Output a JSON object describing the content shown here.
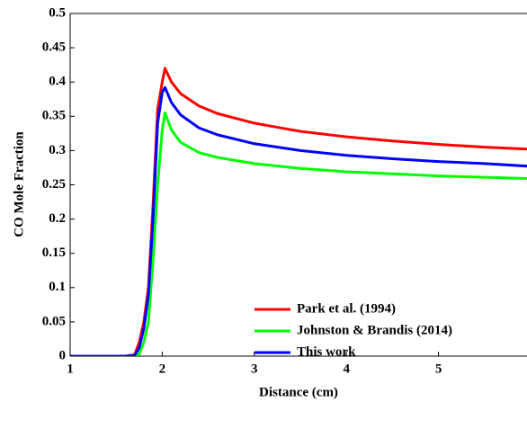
{
  "chart_data": {
    "type": "line",
    "xlabel": "Distance (cm)",
    "ylabel": "CO Mole Fraction",
    "x": [
      1,
      1.6,
      1.7,
      1.75,
      1.8,
      1.85,
      1.9,
      1.95,
      2,
      2.03,
      2.1,
      2.2,
      2.4,
      2.6,
      3,
      3.5,
      4,
      4.5,
      5,
      5.5,
      6
    ],
    "series": [
      {
        "name": "Park et al. (1994)",
        "color": "#ff0000",
        "values": [
          0,
          0,
          0.002,
          0.02,
          0.05,
          0.1,
          0.22,
          0.36,
          0.4,
          0.42,
          0.4,
          0.383,
          0.365,
          0.354,
          0.34,
          0.328,
          0.32,
          0.314,
          0.309,
          0.305,
          0.302
        ]
      },
      {
        "name": "Johnston & Brandis (2014)",
        "color": "#00ff00",
        "values": [
          0,
          0,
          0,
          0.003,
          0.02,
          0.05,
          0.14,
          0.25,
          0.33,
          0.355,
          0.33,
          0.312,
          0.297,
          0.29,
          0.281,
          0.274,
          0.269,
          0.266,
          0.263,
          0.261,
          0.259
        ]
      },
      {
        "name": "This work",
        "color": "#0000ff",
        "values": [
          0,
          0,
          0.001,
          0.012,
          0.04,
          0.09,
          0.2,
          0.34,
          0.385,
          0.392,
          0.37,
          0.352,
          0.333,
          0.323,
          0.31,
          0.3,
          0.293,
          0.288,
          0.284,
          0.281,
          0.277
        ]
      }
    ],
    "xlim": [
      1,
      6
    ],
    "xticks": [
      1,
      2,
      3,
      4,
      5
    ],
    "ylim": [
      0,
      0.5
    ],
    "yticks": [
      0,
      0.05,
      0.1,
      0.15,
      0.2,
      0.25,
      0.3,
      0.35,
      0.4,
      0.45,
      0.5
    ],
    "legend": "lower-right",
    "grid": false
  }
}
